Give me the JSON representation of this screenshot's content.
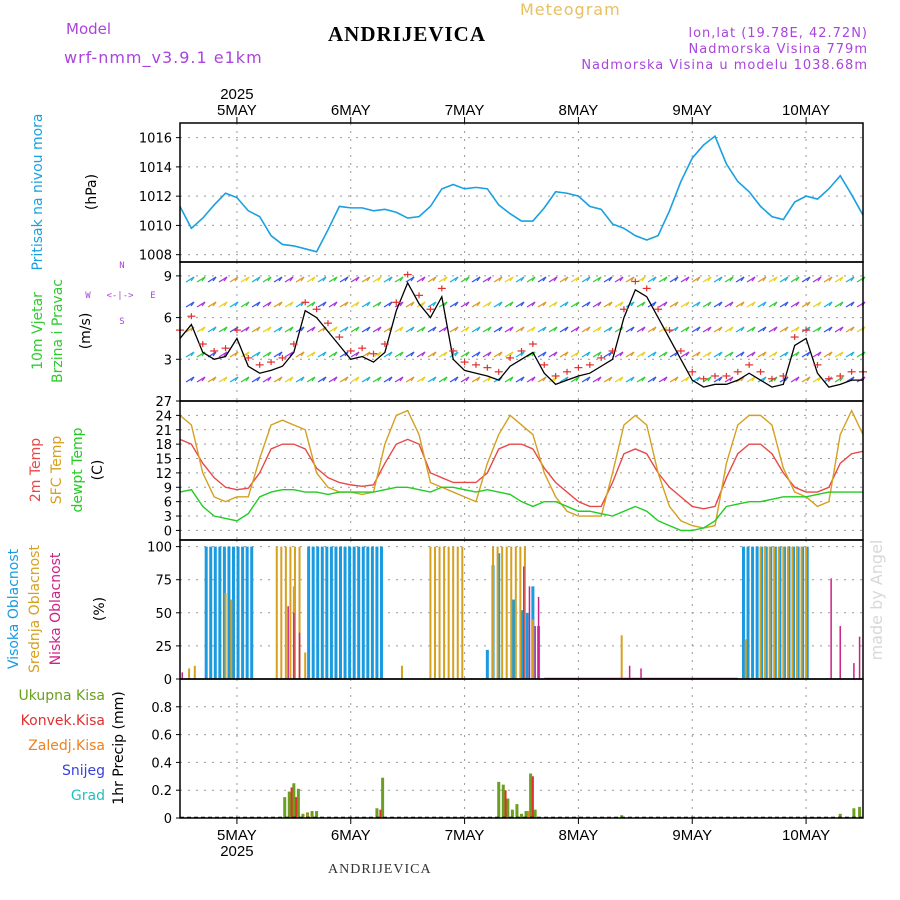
{
  "header": {
    "model_label": "Model",
    "model_name": "wrf-nmm_v3.9.1 e1km",
    "location": "ANDRIJEVICA",
    "product": "Meteogram",
    "coords": "lon,lat (19.78E, 42.72N)",
    "altitude": "Nadmorska Visina 779m",
    "model_altitude": "Nadmorska Visina u modelu 1038.68m"
  },
  "footer": {
    "location": "ANDRIJEVICA",
    "credit": "made by Angel"
  },
  "colors": {
    "pressure": "#1aa0e0",
    "wind_label": "#2ecc2e",
    "temp2m": "#e84848",
    "sfc": "#d4a020",
    "dewpt": "#22cc22",
    "high_cloud": "#1a9be0",
    "mid_cloud": "#d6a020",
    "low_cloud": "#cc2288",
    "total_precip": "#6aa020",
    "conv_precip": "#e03030",
    "frz_precip": "#f08020",
    "snow": "#3a40e0",
    "hail": "#22c0c0",
    "purple": "#aa44dd",
    "frame": "#000000"
  },
  "chart_data": [
    {
      "type": "line",
      "panel": "pressure",
      "labels": {
        "title": "Pritisak na nivou mora",
        "unit": "(hPa)"
      },
      "x_axis": {
        "unit": "day of May 2025",
        "top_year": "2025",
        "bottom_year": "2025",
        "day_labels": [
          "5MAY",
          "6MAY",
          "7MAY",
          "8MAY",
          "9MAY",
          "10MAY"
        ],
        "day_values": [
          5,
          6,
          7,
          8,
          9,
          10
        ],
        "range": [
          4.5,
          10.5
        ]
      },
      "ylim": [
        1007.5,
        1017.0
      ],
      "yticks": [
        1008,
        1010,
        1012,
        1014,
        1016
      ],
      "grid": true,
      "series": [
        {
          "x": [
            4.5,
            4.6,
            4.7,
            4.8,
            4.9,
            5.0,
            5.1,
            5.2,
            5.3,
            5.4,
            5.5,
            5.6,
            5.7,
            5.8,
            5.9,
            6.0,
            6.1,
            6.2,
            6.3,
            6.4,
            6.5,
            6.6,
            6.7,
            6.8,
            6.9,
            7.0,
            7.1,
            7.2,
            7.3,
            7.4,
            7.5,
            7.6,
            7.7,
            7.8,
            7.9,
            8.0,
            8.1,
            8.2,
            8.3,
            8.4,
            8.5,
            8.6,
            8.7,
            8.8,
            8.9,
            9.0,
            9.1,
            9.2,
            9.3,
            9.4,
            9.5,
            9.6,
            9.7,
            9.8,
            9.9,
            10.0,
            10.1,
            10.2,
            10.3,
            10.4,
            10.5
          ],
          "y": [
            1011.3,
            1009.8,
            1010.5,
            1011.4,
            1012.2,
            1011.9,
            1011.0,
            1010.6,
            1009.3,
            1008.7,
            1008.6,
            1008.4,
            1008.2,
            1009.7,
            1011.3,
            1011.2,
            1011.2,
            1011.0,
            1011.1,
            1010.9,
            1010.5,
            1010.6,
            1011.3,
            1012.5,
            1012.8,
            1012.5,
            1012.6,
            1012.5,
            1011.4,
            1010.8,
            1010.3,
            1010.3,
            1011.2,
            1012.3,
            1012.2,
            1012.0,
            1011.3,
            1011.1,
            1010.1,
            1009.8,
            1009.3,
            1009.0,
            1009.3,
            1011.0,
            1013.0,
            1014.6,
            1015.5,
            1016.1,
            1014.2,
            1013.0,
            1012.3,
            1011.3,
            1010.6,
            1010.4,
            1011.6,
            1012.0,
            1011.8,
            1012.5,
            1013.4,
            1012.1,
            1010.7
          ]
        }
      ]
    },
    {
      "type": "line",
      "panel": "wind",
      "labels": {
        "title": "10m Vjetar",
        "subtitle": "Brzina i Pravac",
        "unit": "(m/s)"
      },
      "compass": {
        "n": "N",
        "s": "S",
        "w": "W",
        "e": "E",
        "arrow": "<-|->"
      },
      "ylim": [
        0,
        10
      ],
      "yticks": [
        3,
        6,
        9
      ],
      "grid": true,
      "series": [
        {
          "x": [
            4.5,
            4.6,
            4.7,
            4.8,
            4.9,
            5.0,
            5.1,
            5.2,
            5.3,
            5.4,
            5.5,
            5.6,
            5.7,
            5.8,
            5.9,
            6.0,
            6.1,
            6.2,
            6.3,
            6.4,
            6.5,
            6.6,
            6.7,
            6.8,
            6.9,
            7.0,
            7.1,
            7.2,
            7.3,
            7.4,
            7.5,
            7.6,
            7.7,
            7.8,
            7.9,
            8.0,
            8.1,
            8.2,
            8.3,
            8.4,
            8.5,
            8.6,
            8.7,
            8.8,
            8.9,
            9.0,
            9.1,
            9.2,
            9.3,
            9.4,
            9.5,
            9.6,
            9.7,
            9.8,
            9.9,
            10.0,
            10.1,
            10.2,
            10.3,
            10.4,
            10.5
          ],
          "y": [
            4.5,
            5.5,
            3.5,
            3.0,
            3.2,
            4.5,
            2.5,
            2.0,
            2.2,
            2.5,
            3.5,
            6.5,
            6.0,
            5.0,
            4.0,
            3.0,
            3.2,
            2.8,
            3.5,
            6.5,
            8.5,
            7.0,
            6.0,
            7.5,
            3.0,
            2.2,
            2.0,
            1.8,
            1.5,
            2.5,
            3.0,
            3.5,
            2.0,
            1.2,
            1.5,
            1.8,
            2.0,
            2.5,
            3.0,
            6.0,
            8.0,
            7.5,
            6.0,
            4.5,
            3.0,
            1.5,
            1.0,
            1.2,
            1.2,
            1.5,
            2.0,
            1.5,
            1.0,
            1.2,
            4.0,
            4.5,
            2.0,
            1.0,
            1.2,
            1.5,
            1.5
          ]
        }
      ]
    },
    {
      "type": "line",
      "panel": "temperature",
      "labels": {
        "t2m": "2m Temp",
        "sfc": "SFC Temp",
        "dew": "dewpt Temp",
        "unit": "(C)"
      },
      "ylim": [
        -2,
        27
      ],
      "yticks": [
        0,
        3,
        6,
        9,
        12,
        15,
        18,
        21,
        24,
        27
      ],
      "grid": true,
      "series": [
        {
          "name": "2m Temp",
          "x": [
            4.5,
            4.6,
            4.7,
            4.8,
            4.9,
            5.0,
            5.1,
            5.2,
            5.3,
            5.4,
            5.5,
            5.6,
            5.7,
            5.8,
            5.9,
            6.0,
            6.1,
            6.2,
            6.3,
            6.4,
            6.5,
            6.6,
            6.7,
            6.8,
            6.9,
            7.0,
            7.1,
            7.2,
            7.3,
            7.4,
            7.5,
            7.6,
            7.7,
            7.8,
            7.9,
            8.0,
            8.1,
            8.2,
            8.3,
            8.4,
            8.5,
            8.6,
            8.7,
            8.8,
            8.9,
            9.0,
            9.1,
            9.2,
            9.3,
            9.4,
            9.5,
            9.6,
            9.7,
            9.8,
            9.9,
            10.0,
            10.1,
            10.2,
            10.3,
            10.4,
            10.5
          ],
          "y": [
            19,
            18,
            14,
            11,
            9,
            8.5,
            8.8,
            12,
            17,
            18,
            18,
            17,
            13,
            11,
            10,
            9.5,
            9.2,
            9.5,
            14,
            18,
            19,
            18,
            12,
            11,
            10,
            10,
            10,
            12,
            17,
            18,
            18,
            17,
            13,
            10,
            8,
            6,
            5,
            5,
            10,
            16,
            17,
            16,
            12,
            9,
            7,
            5,
            4.5,
            5,
            11,
            16,
            18,
            18,
            16,
            12,
            9,
            8,
            8,
            9,
            14,
            16,
            16.5
          ]
        },
        {
          "name": "SFC Temp",
          "x": [
            4.5,
            4.6,
            4.7,
            4.8,
            4.9,
            5.0,
            5.1,
            5.2,
            5.3,
            5.4,
            5.5,
            5.6,
            5.7,
            5.8,
            5.9,
            6.0,
            6.1,
            6.2,
            6.3,
            6.4,
            6.5,
            6.6,
            6.7,
            6.8,
            6.9,
            7.0,
            7.1,
            7.2,
            7.3,
            7.4,
            7.5,
            7.6,
            7.7,
            7.8,
            7.9,
            8.0,
            8.1,
            8.2,
            8.3,
            8.4,
            8.5,
            8.6,
            8.7,
            8.8,
            8.9,
            9.0,
            9.1,
            9.2,
            9.3,
            9.4,
            9.5,
            9.6,
            9.7,
            9.8,
            9.9,
            10.0,
            10.1,
            10.2,
            10.3,
            10.4,
            10.5
          ],
          "y": [
            24,
            22,
            12,
            7,
            6,
            7,
            7,
            15,
            22,
            23,
            22,
            21,
            12,
            9,
            8,
            8,
            7.5,
            8,
            18,
            24,
            25,
            20,
            10,
            9,
            8,
            7,
            6,
            14,
            20,
            24,
            22,
            20,
            12,
            7,
            4,
            3,
            3,
            3,
            12,
            22,
            24,
            22,
            12,
            5,
            2,
            1,
            0.5,
            1,
            14,
            22,
            24,
            24,
            22,
            13,
            8,
            7,
            5,
            6,
            20,
            25,
            20
          ]
        },
        {
          "name": "dewpt Temp",
          "x": [
            4.5,
            4.6,
            4.7,
            4.8,
            4.9,
            5.0,
            5.1,
            5.2,
            5.3,
            5.4,
            5.5,
            5.6,
            5.7,
            5.8,
            5.9,
            6.0,
            6.1,
            6.2,
            6.3,
            6.4,
            6.5,
            6.6,
            6.7,
            6.8,
            6.9,
            7.0,
            7.1,
            7.2,
            7.3,
            7.4,
            7.5,
            7.6,
            7.7,
            7.8,
            7.9,
            8.0,
            8.1,
            8.2,
            8.3,
            8.4,
            8.5,
            8.6,
            8.7,
            8.8,
            8.9,
            9.0,
            9.1,
            9.2,
            9.3,
            9.4,
            9.5,
            9.6,
            9.7,
            9.8,
            9.9,
            10.0,
            10.1,
            10.2,
            10.3,
            10.4,
            10.5
          ],
          "y": [
            8,
            8.5,
            5,
            3,
            2.5,
            2,
            3.5,
            7,
            8,
            8.5,
            8.5,
            8,
            8,
            7.5,
            8,
            8,
            8,
            8,
            8.5,
            9,
            9,
            8.5,
            8,
            9,
            9,
            8.5,
            8,
            8.5,
            8,
            7.5,
            6,
            5,
            6,
            6,
            5,
            4,
            4,
            3.5,
            3,
            4,
            5,
            4,
            2,
            1,
            0,
            0,
            0.5,
            2,
            5,
            5.5,
            6,
            6,
            6.5,
            7,
            7,
            7,
            7.5,
            8,
            8,
            8,
            8
          ]
        }
      ]
    },
    {
      "type": "bar",
      "panel": "clouds",
      "labels": {
        "high": "Visoka Oblacnost",
        "mid": "Srednja Oblacnost",
        "low": "Niska Oblacnost",
        "unit": "(%)"
      },
      "ylim": [
        0,
        105
      ],
      "yticks": [
        0,
        25,
        50,
        75,
        100
      ],
      "grid": true,
      "series": [
        {
          "name": "Visoka Oblacnost",
          "segments": [
            {
              "from": 4.73,
              "to": 5.15,
              "value": 100
            },
            {
              "from": 5.63,
              "to": 6.3,
              "value": 100
            },
            {
              "from": 9.45,
              "to": 10.03,
              "value": 100
            }
          ],
          "x": [
            7.2,
            7.25,
            7.3,
            7.43,
            7.5,
            7.55,
            7.6,
            7.65
          ],
          "values": [
            22,
            86,
            95,
            60,
            52,
            50,
            70,
            40
          ]
        },
        {
          "name": "Srednja Oblacnost",
          "segments": [
            {
              "from": 5.35,
              "to": 5.55,
              "value": 100
            },
            {
              "from": 6.7,
              "to": 7.0,
              "value": 100
            },
            {
              "from": 7.25,
              "to": 7.55,
              "value": 100
            },
            {
              "from": 9.6,
              "to": 10.03,
              "value": 100
            }
          ],
          "x": [
            4.58,
            4.63,
            4.9,
            4.95,
            5.5,
            5.55,
            5.6,
            6.45,
            7.6,
            8.38,
            9.47
          ],
          "values": [
            8,
            10,
            65,
            60,
            70,
            30,
            20,
            10,
            45,
            33,
            30
          ]
        },
        {
          "name": "Niska Oblacnost",
          "x": [
            4.52,
            5.45,
            5.5,
            5.55,
            7.52,
            7.57,
            7.62,
            7.65,
            8.45,
            8.55,
            10.22,
            10.3,
            10.42,
            10.47
          ],
          "values": [
            5,
            55,
            50,
            35,
            85,
            70,
            40,
            62,
            10,
            8,
            76,
            40,
            12,
            32
          ]
        }
      ]
    },
    {
      "type": "bar",
      "panel": "precip",
      "labels": {
        "total": "Ukupna Kisa",
        "conv": "Konvek.Kisa",
        "frz": "Zaledj.Kisa",
        "snow": "Snijeg",
        "hail": "Grad",
        "unit": "1hr Precip (mm)"
      },
      "ylim": [
        0,
        1.0
      ],
      "yticks": [
        0,
        0.2,
        0.4,
        0.6,
        0.8
      ],
      "grid": true,
      "series": [
        {
          "name": "Ukupna Kisa",
          "x": [
            5.42,
            5.46,
            5.5,
            5.54,
            5.58,
            5.62,
            5.66,
            5.7,
            6.23,
            6.28,
            7.3,
            7.34,
            7.38,
            7.42,
            7.46,
            7.5,
            7.54,
            7.58,
            7.62,
            8.38,
            10.3,
            10.42,
            10.47
          ],
          "values": [
            0.15,
            0.19,
            0.25,
            0.21,
            0.03,
            0.04,
            0.05,
            0.05,
            0.07,
            0.29,
            0.26,
            0.24,
            0.14,
            0.06,
            0.1,
            0.03,
            0.05,
            0.32,
            0.06,
            0.02,
            0.03,
            0.07,
            0.08
          ]
        },
        {
          "name": "Konvek.Kisa",
          "x": [
            5.48,
            5.52,
            6.26,
            7.36,
            7.6
          ],
          "values": [
            0.22,
            0.15,
            0.06,
            0.2,
            0.3
          ]
        },
        {
          "name": "Zaledj.Kisa",
          "x": [
            5.62,
            7.56
          ],
          "values": [
            0.03,
            0.05
          ]
        }
      ]
    }
  ]
}
